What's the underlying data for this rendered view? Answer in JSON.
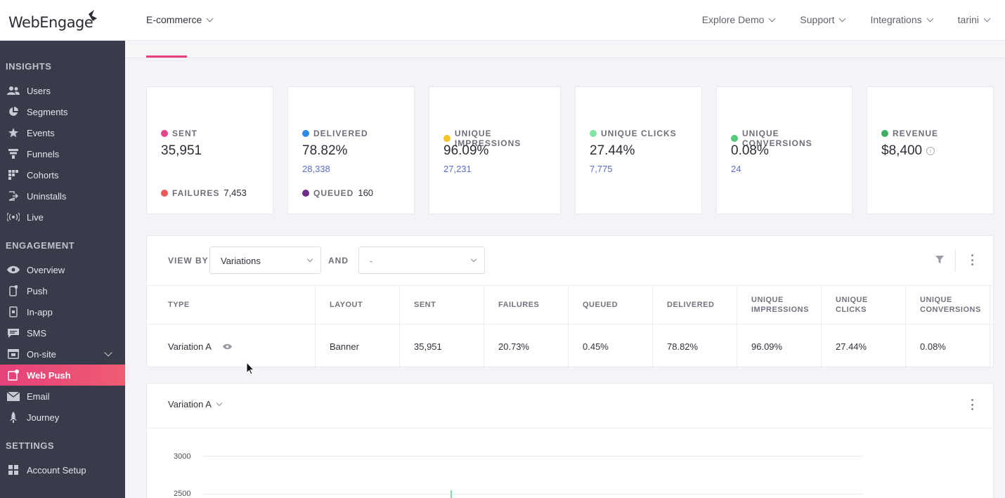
{
  "brand": {
    "logo_text": "WebEngage"
  },
  "header": {
    "project": "E-commerce",
    "nav": [
      "Explore Demo",
      "Support",
      "Integrations",
      "tarini"
    ]
  },
  "sidebar": {
    "sections": [
      {
        "title": "INSIGHTS",
        "items": [
          {
            "label": "Users",
            "icon": "users-icon"
          },
          {
            "label": "Segments",
            "icon": "pie-icon"
          },
          {
            "label": "Events",
            "icon": "star-icon"
          },
          {
            "label": "Funnels",
            "icon": "funnel-icon"
          },
          {
            "label": "Cohorts",
            "icon": "grid-icon"
          },
          {
            "label": "Uninstalls",
            "icon": "exit-icon"
          },
          {
            "label": "Live",
            "icon": "broadcast-icon"
          }
        ]
      },
      {
        "title": "ENGAGEMENT",
        "items": [
          {
            "label": "Overview",
            "icon": "eye-icon"
          },
          {
            "label": "Push",
            "icon": "mobile-icon"
          },
          {
            "label": "In-app",
            "icon": "inapp-icon"
          },
          {
            "label": "SMS",
            "icon": "chat-icon"
          },
          {
            "label": "On-site",
            "icon": "browser-icon"
          },
          {
            "label": "Web Push",
            "icon": "webpush-icon"
          },
          {
            "label": "Email",
            "icon": "mail-icon"
          },
          {
            "label": "Journey",
            "icon": "rocket-icon"
          }
        ]
      },
      {
        "title": "SETTINGS",
        "items": [
          {
            "label": "Account Setup",
            "icon": "grid-icon"
          }
        ]
      }
    ]
  },
  "stats": [
    {
      "label": "SENT",
      "value": "35,951",
      "color": "#e5458a",
      "foot_label": "FAILURES",
      "foot_value": "7,453",
      "foot_color": "#eb5a5a"
    },
    {
      "label": "DELIVERED",
      "value": "78.82%",
      "sub": "28,338",
      "color": "#2f8be6",
      "foot_label": "QUEUED",
      "foot_value": "160",
      "foot_color": "#6e2d86"
    },
    {
      "label": "UNIQUE IMPRESSIONS",
      "value": "96.09%",
      "sub": "27,231",
      "color": "#f3c32a"
    },
    {
      "label": "UNIQUE CLICKS",
      "value": "27.44%",
      "sub": "7,775",
      "color": "#7ee5a3"
    },
    {
      "label": "UNIQUE CONVERSIONS",
      "value": "0.08%",
      "sub": "24",
      "color": "#54c97a"
    },
    {
      "label": "REVENUE",
      "value": "$8,400",
      "color": "#3fae63"
    }
  ],
  "table": {
    "view_by_label": "VIEW BY",
    "view_by_value": "Variations",
    "and_label": "AND",
    "and_value": "-",
    "columns": [
      "TYPE",
      "LAYOUT",
      "SENT",
      "FAILURES",
      "QUEUED",
      "DELIVERED",
      "UNIQUE IMPRESSIONS",
      "UNIQUE CLICKS",
      "UNIQUE CONVERSIONS"
    ],
    "rows": [
      [
        "Variation A",
        "Banner",
        "35,951",
        "20.73%",
        "0.45%",
        "78.82%",
        "96.09%",
        "27.44%",
        "0.08%"
      ]
    ]
  },
  "chart_panel": {
    "variation": "Variation A"
  },
  "chart_data": {
    "type": "bar",
    "y_ticks": [
      "3000",
      "2500"
    ],
    "series": [
      {
        "values": [
          2550
        ]
      }
    ]
  }
}
